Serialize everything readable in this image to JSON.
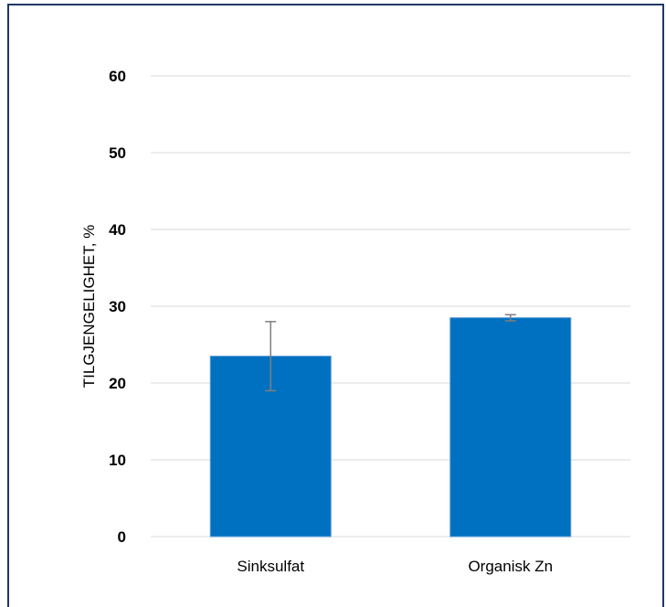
{
  "chart_data": {
    "type": "bar",
    "categories": [
      "Sinksulfat",
      "Organisk Zn"
    ],
    "values": [
      23.5,
      28.5
    ],
    "error": [
      4.5,
      0.4
    ],
    "ylabel": "TILGJENGELIGHET, %",
    "xlabel": "",
    "title": "",
    "ylim": [
      0,
      60
    ],
    "yticks": [
      0,
      10,
      20,
      30,
      40,
      50,
      60
    ],
    "grid": true,
    "legend": "none",
    "bar_color": "#0070c0",
    "grid_color": "#d9d9d9",
    "error_color": "#7f7f7f",
    "frame_color": "#1f3864"
  }
}
